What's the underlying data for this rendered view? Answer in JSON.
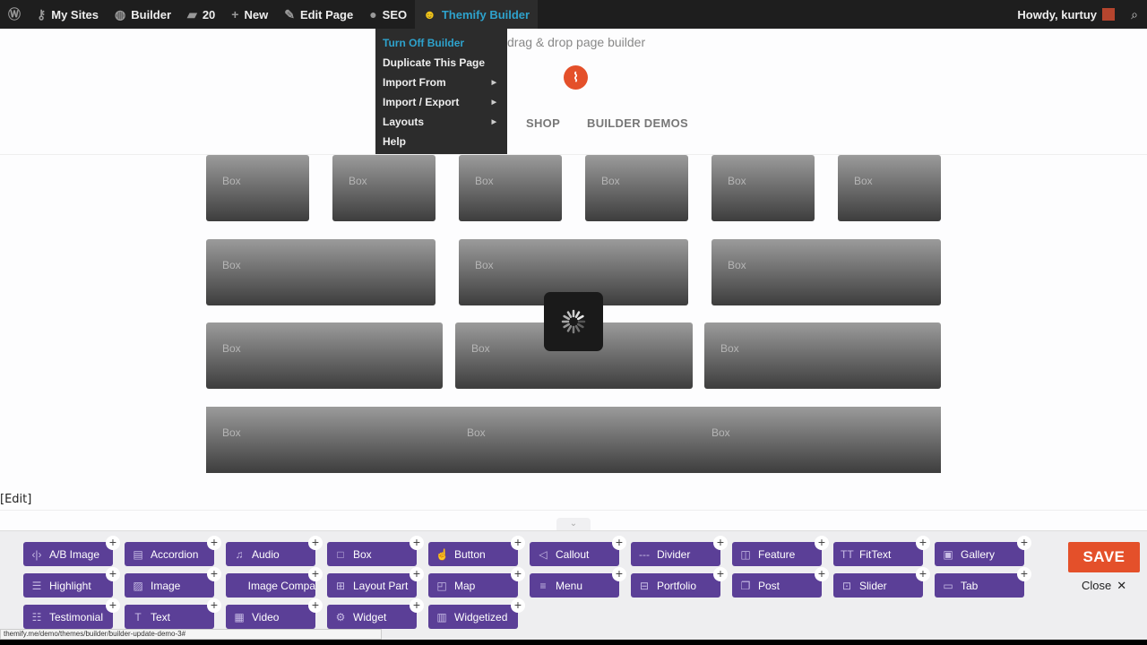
{
  "adminbar": {
    "items": [
      {
        "icon": "wordpress-icon",
        "glyph": "Ⓦ",
        "label": ""
      },
      {
        "icon": "key-icon",
        "glyph": "⚷",
        "label": "My Sites"
      },
      {
        "icon": "dashboard-icon",
        "glyph": "◍",
        "label": "Builder"
      },
      {
        "icon": "comment-icon",
        "glyph": "▰",
        "label": "20"
      },
      {
        "icon": "plus-icon",
        "glyph": "+",
        "label": "New"
      },
      {
        "icon": "pencil-icon",
        "glyph": "✎",
        "label": "Edit Page"
      },
      {
        "icon": "circle-icon",
        "glyph": "●",
        "label": "SEO"
      },
      {
        "icon": "themify-icon",
        "glyph": "☻",
        "label": "Themify Builder"
      }
    ],
    "howdy": "Howdy, kurtuy"
  },
  "dropdown": {
    "items": [
      {
        "label": "Turn Off Builder",
        "submenu": false,
        "highlight": true
      },
      {
        "label": "Duplicate This Page",
        "submenu": false
      },
      {
        "label": "Import From",
        "submenu": true
      },
      {
        "label": "Import / Export",
        "submenu": true
      },
      {
        "label": "Layouts",
        "submenu": true
      },
      {
        "label": "Help",
        "submenu": false
      }
    ]
  },
  "site": {
    "tagline": "drag & drop page builder",
    "nav": [
      "SHOP",
      "BUILDER DEMOS"
    ]
  },
  "boxes": {
    "label": "Box",
    "rows": [
      6,
      3,
      3,
      3
    ]
  },
  "edit_link": "[Edit]",
  "modules": [
    {
      "label": "A/B Image",
      "icon": "ab-image-icon",
      "glyph": "‹|›"
    },
    {
      "label": "Accordion",
      "icon": "accordion-icon",
      "glyph": "▤"
    },
    {
      "label": "Audio",
      "icon": "music-icon",
      "glyph": "♫"
    },
    {
      "label": "Box",
      "icon": "box-icon",
      "glyph": "□"
    },
    {
      "label": "Button",
      "icon": "hand-icon",
      "glyph": "☝"
    },
    {
      "label": "Callout",
      "icon": "megaphone-icon",
      "glyph": "◁"
    },
    {
      "label": "Divider",
      "icon": "divider-icon",
      "glyph": "---"
    },
    {
      "label": "Feature",
      "icon": "feature-icon",
      "glyph": "◫"
    },
    {
      "label": "FitText",
      "icon": "fittext-icon",
      "glyph": "TT"
    },
    {
      "label": "Gallery",
      "icon": "gallery-icon",
      "glyph": "▣"
    },
    {
      "label": "Highlight",
      "icon": "highlight-icon",
      "glyph": "☰"
    },
    {
      "label": "Image",
      "icon": "image-icon",
      "glyph": "▨"
    },
    {
      "label": "Image Compa",
      "icon": "",
      "glyph": ""
    },
    {
      "label": "Layout Part",
      "icon": "layout-icon",
      "glyph": "⊞"
    },
    {
      "label": "Map",
      "icon": "map-icon",
      "glyph": "◰"
    },
    {
      "label": "Menu",
      "icon": "menu-icon",
      "glyph": "≡"
    },
    {
      "label": "Portfolio",
      "icon": "briefcase-icon",
      "glyph": "⊟"
    },
    {
      "label": "Post",
      "icon": "post-icon",
      "glyph": "❐"
    },
    {
      "label": "Slider",
      "icon": "slider-icon",
      "glyph": "⊡"
    },
    {
      "label": "Tab",
      "icon": "folder-icon",
      "glyph": "▭"
    },
    {
      "label": "Testimonial",
      "icon": "testimonial-icon",
      "glyph": "☷"
    },
    {
      "label": "Text",
      "icon": "text-icon",
      "glyph": "T"
    },
    {
      "label": "Video",
      "icon": "video-icon",
      "glyph": "▦"
    },
    {
      "label": "Widget",
      "icon": "widget-icon",
      "glyph": "⚙"
    },
    {
      "label": "Widgetized",
      "icon": "widgetized-icon",
      "glyph": "▥"
    }
  ],
  "toolbar": {
    "save": "SAVE",
    "close": "Close"
  },
  "status_url": "themify.me/demo/themes/builder/builder-update-demo-3#",
  "colors": {
    "module": "#5b3f97",
    "save": "#e4502a",
    "highlight": "#2ea2cc"
  }
}
